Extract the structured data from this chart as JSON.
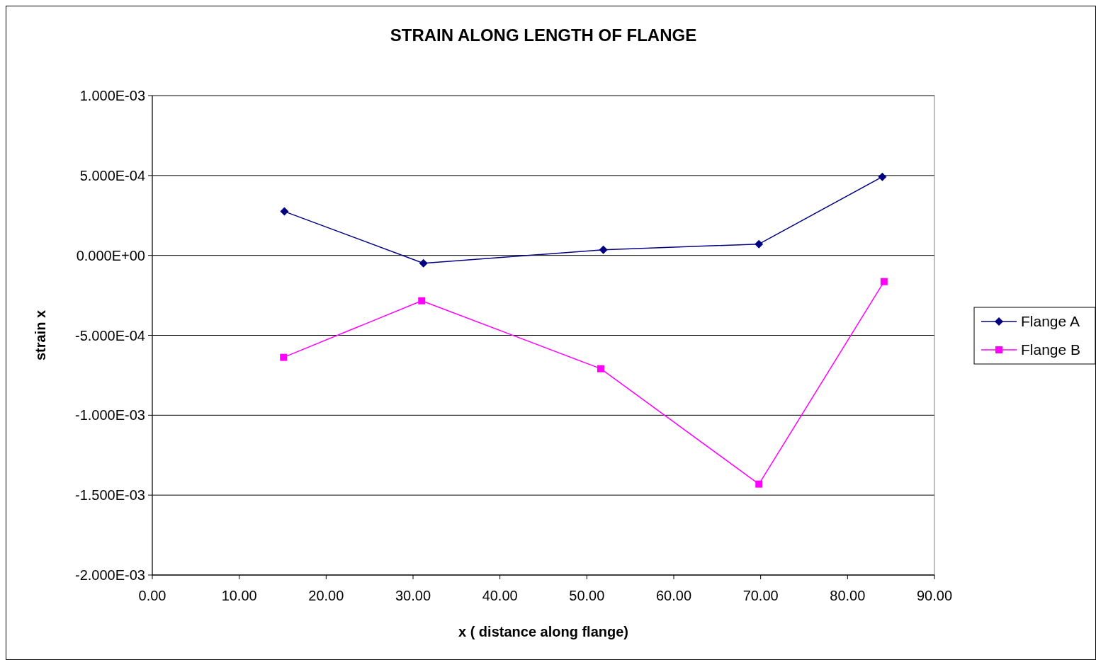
{
  "chart_data": {
    "type": "line",
    "title": "STRAIN ALONG LENGTH OF FLANGE",
    "xlabel": "x ( distance along flange)",
    "ylabel": "strain x",
    "xlim": [
      0,
      90
    ],
    "xticks": [
      {
        "value": 0,
        "label": "0.00"
      },
      {
        "value": 10,
        "label": "10.00"
      },
      {
        "value": 20,
        "label": "20.00"
      },
      {
        "value": 30,
        "label": "30.00"
      },
      {
        "value": 40,
        "label": "40.00"
      },
      {
        "value": 50,
        "label": "50.00"
      },
      {
        "value": 60,
        "label": "60.00"
      },
      {
        "value": 70,
        "label": "70.00"
      },
      {
        "value": 80,
        "label": "80.00"
      },
      {
        "value": 90,
        "label": "90.00"
      }
    ],
    "ylim": [
      -0.002,
      0.001
    ],
    "yticks": [
      {
        "value": 0.001,
        "label": "1.000E-03"
      },
      {
        "value": 0.0005,
        "label": "5.000E-04"
      },
      {
        "value": 0,
        "label": "0.000E+00"
      },
      {
        "value": -0.0005,
        "label": "-5.000E-04"
      },
      {
        "value": -0.001,
        "label": "-1.000E-03"
      },
      {
        "value": -0.0015,
        "label": "-1.500E-03"
      },
      {
        "value": -0.002,
        "label": "-2.000E-03"
      }
    ],
    "grid": "y",
    "legend": "right",
    "series": [
      {
        "name": "Flange A",
        "color": "#000080",
        "marker": "diamond",
        "x": [
          15.2,
          31.2,
          51.9,
          69.8,
          84.0
        ],
        "values": [
          0.000275,
          -4.9e-05,
          3.5e-05,
          7.1e-05,
          0.000492
        ]
      },
      {
        "name": "Flange B",
        "color": "#ff00ff",
        "marker": "square",
        "x": [
          15.1,
          31.0,
          51.6,
          69.8,
          84.2
        ],
        "values": [
          -0.000638,
          -0.000284,
          -0.000709,
          -0.001431,
          -0.000164
        ]
      }
    ]
  }
}
